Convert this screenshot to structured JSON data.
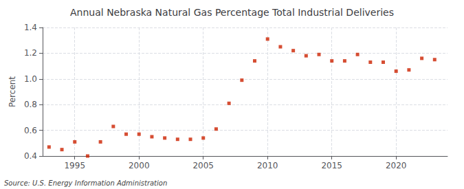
{
  "chart_data": {
    "type": "scatter",
    "title": "Annual Nebraska Natural Gas Percentage Total Industrial Deliveries",
    "ylabel": "Percent",
    "source": "Source: U.S. Energy Information Administration",
    "x": [
      1993,
      1994,
      1995,
      1996,
      1997,
      1998,
      1999,
      2000,
      2001,
      2002,
      2003,
      2004,
      2005,
      2006,
      2007,
      2008,
      2009,
      2010,
      2011,
      2012,
      2013,
      2014,
      2015,
      2016,
      2017,
      2018,
      2019,
      2020,
      2021,
      2022,
      2023
    ],
    "values": [
      0.47,
      0.45,
      0.51,
      0.4,
      0.51,
      0.63,
      0.57,
      0.57,
      0.55,
      0.54,
      0.53,
      0.53,
      0.54,
      0.61,
      0.81,
      0.99,
      1.14,
      1.31,
      1.25,
      1.22,
      1.18,
      1.19,
      1.14,
      1.14,
      1.19,
      1.13,
      1.13,
      1.06,
      1.07,
      1.16,
      1.15
    ],
    "color": "#cc2200",
    "marker": "square",
    "xlim": [
      1992.5,
      2024
    ],
    "xticks": [
      1995,
      2000,
      2005,
      2010,
      2015,
      2020
    ],
    "ylim": [
      0.4,
      1.4
    ],
    "yticks": [
      0.4,
      0.6,
      0.8,
      {
        "value": 1.0,
        "label": "1.0"
      },
      1.2,
      1.4
    ],
    "grid": true
  }
}
